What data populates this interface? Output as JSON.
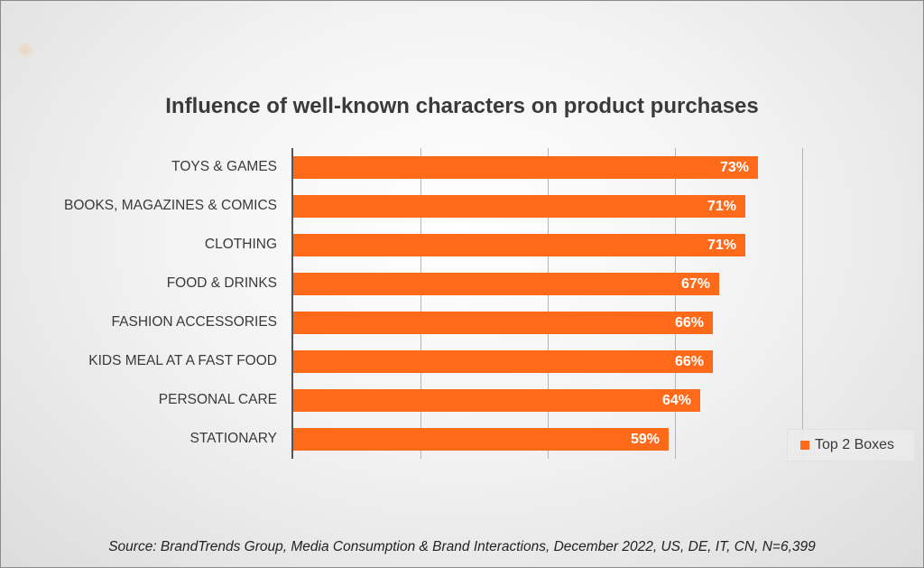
{
  "chart_data": {
    "type": "bar",
    "orientation": "horizontal",
    "title": "Influence of well-known characters on product purchases",
    "categories": [
      "TOYS & GAMES",
      "BOOKS, MAGAZINES & COMICS",
      "CLOTHING",
      "FOOD & DRINKS",
      "FASHION ACCESSORIES",
      "KIDS MEAL AT A FAST FOOD",
      "PERSONAL CARE",
      "STATIONARY"
    ],
    "series": [
      {
        "name": "Top 2 Boxes",
        "values": [
          73,
          71,
          71,
          67,
          66,
          66,
          64,
          59
        ],
        "color": "#ff6a1a"
      }
    ],
    "value_labels": [
      "73%",
      "71%",
      "71%",
      "67%",
      "66%",
      "66%",
      "64%",
      "59%"
    ],
    "xlim": [
      0,
      80
    ],
    "grid": true,
    "legend_position": "bottom-right",
    "source": "Source: BrandTrends Group, Media Consumption & Brand Interactions, December 2022, US, DE, IT, CN, N=6,399"
  }
}
